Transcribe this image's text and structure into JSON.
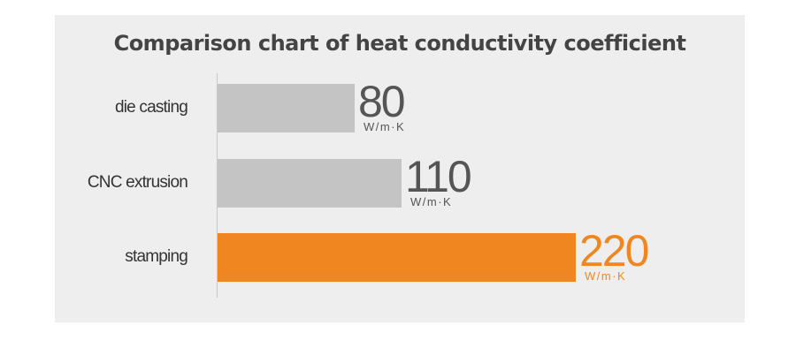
{
  "chart_data": {
    "type": "bar",
    "orientation": "horizontal",
    "title": "Comparison chart of heat conductivity coefficient",
    "categories": [
      "die casting",
      "CNC extrusion",
      "stamping"
    ],
    "values": [
      80,
      110,
      220
    ],
    "value_labels": [
      "80",
      "110",
      "220"
    ],
    "unit": "W/m·K",
    "colors": [
      "#c4c4c4",
      "#c4c4c4",
      "#f0861f"
    ],
    "label_colors": [
      "#555555",
      "#555555",
      "#f0861f"
    ],
    "xlabel": "",
    "ylabel": "",
    "grid": false
  }
}
